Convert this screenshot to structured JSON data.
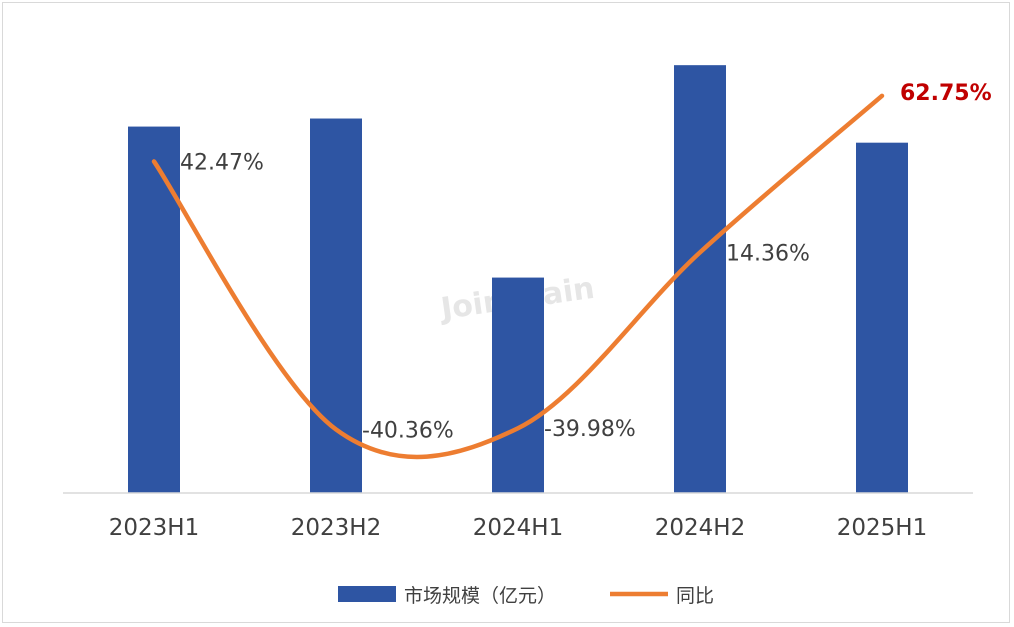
{
  "chart_data": {
    "type": "bar",
    "categories": [
      "2023H1",
      "2023H2",
      "2024H1",
      "2024H2",
      "2025H1"
    ],
    "series": [
      {
        "name": "市场规模（亿元）",
        "type": "bar",
        "axis": "left",
        "color": "#2e55a3",
        "values": [
          364,
          372,
          214,
          425,
          348
        ]
      },
      {
        "name": "同比",
        "type": "line",
        "axis": "right",
        "color": "#ed7d31",
        "values": [
          42.47,
          -40.36,
          -39.98,
          14.36,
          62.75
        ],
        "labels": [
          "42.47%",
          "-40.36%",
          "-39.98%",
          "14.36%",
          "62.75%"
        ]
      }
    ],
    "ylim_left": [
      0,
      450
    ],
    "ylim_right": [
      -60,
      80
    ],
    "highlight": {
      "index": 4,
      "color": "#c00000"
    },
    "legend_position": "bottom",
    "grid": false
  },
  "watermark": "Joinchain"
}
